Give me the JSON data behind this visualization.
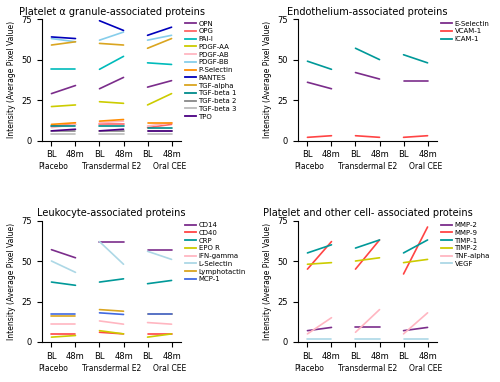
{
  "panel_titles": [
    "Platelet α granule-associated proteins",
    "Endothelium-associated proteins",
    "Leukocyte-associated proteins",
    "Platelet and other cell- associated proteins"
  ],
  "ylabel": "Intensity (Average Pixel Value)",
  "ylim": [
    0,
    75
  ],
  "yticks": [
    0,
    25,
    50,
    75
  ],
  "panel1": {
    "series": {
      "OPN": {
        "color": "#7B2D8B",
        "data": [
          [
            29,
            34
          ],
          [
            32,
            39
          ],
          [
            33,
            37
          ]
        ]
      },
      "OPG": {
        "color": "#FF6666",
        "data": [
          [
            9,
            10
          ],
          [
            10,
            10
          ],
          [
            8,
            10
          ]
        ]
      },
      "PAI-I": {
        "color": "#00BBBB",
        "data": [
          [
            44,
            44
          ],
          [
            44,
            52
          ],
          [
            48,
            47
          ]
        ]
      },
      "PDGF-AA": {
        "color": "#CCCC00",
        "data": [
          [
            21,
            22
          ],
          [
            24,
            23
          ],
          [
            22,
            29
          ]
        ]
      },
      "PDGF-AB": {
        "color": "#FFB6C1",
        "data": [
          [
            8,
            10
          ],
          [
            11,
            12
          ],
          [
            9,
            11
          ]
        ]
      },
      "PDGF-BB": {
        "color": "#87CEEB",
        "data": [
          [
            63,
            61
          ],
          [
            62,
            67
          ],
          [
            62,
            65
          ]
        ]
      },
      "P-Selectin": {
        "color": "#FF8C00",
        "data": [
          [
            10,
            11
          ],
          [
            12,
            13
          ],
          [
            11,
            11
          ]
        ]
      },
      "RANTES": {
        "color": "#0000BB",
        "data": [
          [
            64,
            63
          ],
          [
            74,
            68
          ],
          [
            65,
            70
          ]
        ]
      },
      "TGF-alpha": {
        "color": "#DAA520",
        "data": [
          [
            59,
            61
          ],
          [
            60,
            59
          ],
          [
            57,
            63
          ]
        ]
      },
      "TGF-beta 1": {
        "color": "#008B8B",
        "data": [
          [
            9,
            9
          ],
          [
            9,
            9
          ],
          [
            8,
            8
          ]
        ]
      },
      "TGF-beta 2": {
        "color": "#888888",
        "data": [
          [
            6,
            6
          ],
          [
            6,
            6
          ],
          [
            6,
            6
          ]
        ]
      },
      "TGF-beta 3": {
        "color": "#BBBBBB",
        "data": [
          [
            4,
            4
          ],
          [
            4,
            4
          ],
          [
            4,
            4
          ]
        ]
      },
      "TPO": {
        "color": "#4B0082",
        "data": [
          [
            6,
            7
          ],
          [
            6,
            7
          ],
          [
            6,
            6
          ]
        ]
      }
    }
  },
  "panel2": {
    "series": {
      "E-Selectin": {
        "color": "#7B2D8B",
        "data": [
          [
            36,
            32
          ],
          [
            42,
            38
          ],
          [
            37,
            37
          ]
        ]
      },
      "VCAM-1": {
        "color": "#FF4444",
        "data": [
          [
            2,
            3
          ],
          [
            3,
            2
          ],
          [
            2,
            3
          ]
        ]
      },
      "ICAM-1": {
        "color": "#009999",
        "data": [
          [
            49,
            44
          ],
          [
            57,
            50
          ],
          [
            53,
            48
          ]
        ]
      }
    }
  },
  "panel3": {
    "series": {
      "CD14": {
        "color": "#7B2D8B",
        "data": [
          [
            57,
            52
          ],
          [
            62,
            62
          ],
          [
            57,
            57
          ]
        ]
      },
      "CD40": {
        "color": "#FF4444",
        "data": [
          [
            5,
            5
          ],
          [
            6,
            5
          ],
          [
            5,
            5
          ]
        ]
      },
      "CRP": {
        "color": "#009999",
        "data": [
          [
            37,
            35
          ],
          [
            37,
            39
          ],
          [
            36,
            38
          ]
        ]
      },
      "EPO R": {
        "color": "#CCCC00",
        "data": [
          [
            3,
            4
          ],
          [
            7,
            5
          ],
          [
            3,
            5
          ]
        ]
      },
      "IFN-gamma": {
        "color": "#FFB6C1",
        "data": [
          [
            11,
            11
          ],
          [
            13,
            11
          ],
          [
            12,
            11
          ]
        ]
      },
      "L-Selectin": {
        "color": "#ADD8E6",
        "data": [
          [
            50,
            43
          ],
          [
            62,
            48
          ],
          [
            56,
            51
          ]
        ]
      },
      "Lymphotactin": {
        "color": "#DAA520",
        "data": [
          [
            16,
            16
          ],
          [
            20,
            19
          ],
          [
            17,
            17
          ]
        ]
      },
      "MCP-1": {
        "color": "#4169E1",
        "data": [
          [
            17,
            17
          ],
          [
            18,
            17
          ],
          [
            17,
            17
          ]
        ]
      }
    }
  },
  "panel4": {
    "series": {
      "MMP-2": {
        "color": "#7B2D8B",
        "data": [
          [
            7,
            9
          ],
          [
            9,
            9
          ],
          [
            7,
            9
          ]
        ]
      },
      "MMP-9": {
        "color": "#FF4444",
        "data": [
          [
            45,
            62
          ],
          [
            45,
            63
          ],
          [
            42,
            71
          ]
        ]
      },
      "TIMP-1": {
        "color": "#009999",
        "data": [
          [
            55,
            60
          ],
          [
            58,
            63
          ],
          [
            55,
            63
          ]
        ]
      },
      "TIMP-2": {
        "color": "#CCCC00",
        "data": [
          [
            48,
            49
          ],
          [
            50,
            52
          ],
          [
            49,
            51
          ]
        ]
      },
      "TNF-alpha": {
        "color": "#FFB6C1",
        "data": [
          [
            5,
            15
          ],
          [
            6,
            20
          ],
          [
            5,
            18
          ]
        ]
      },
      "VEGF": {
        "color": "#ADD8E6",
        "data": [
          [
            2,
            2
          ],
          [
            2,
            2
          ],
          [
            2,
            2
          ]
        ]
      }
    }
  }
}
